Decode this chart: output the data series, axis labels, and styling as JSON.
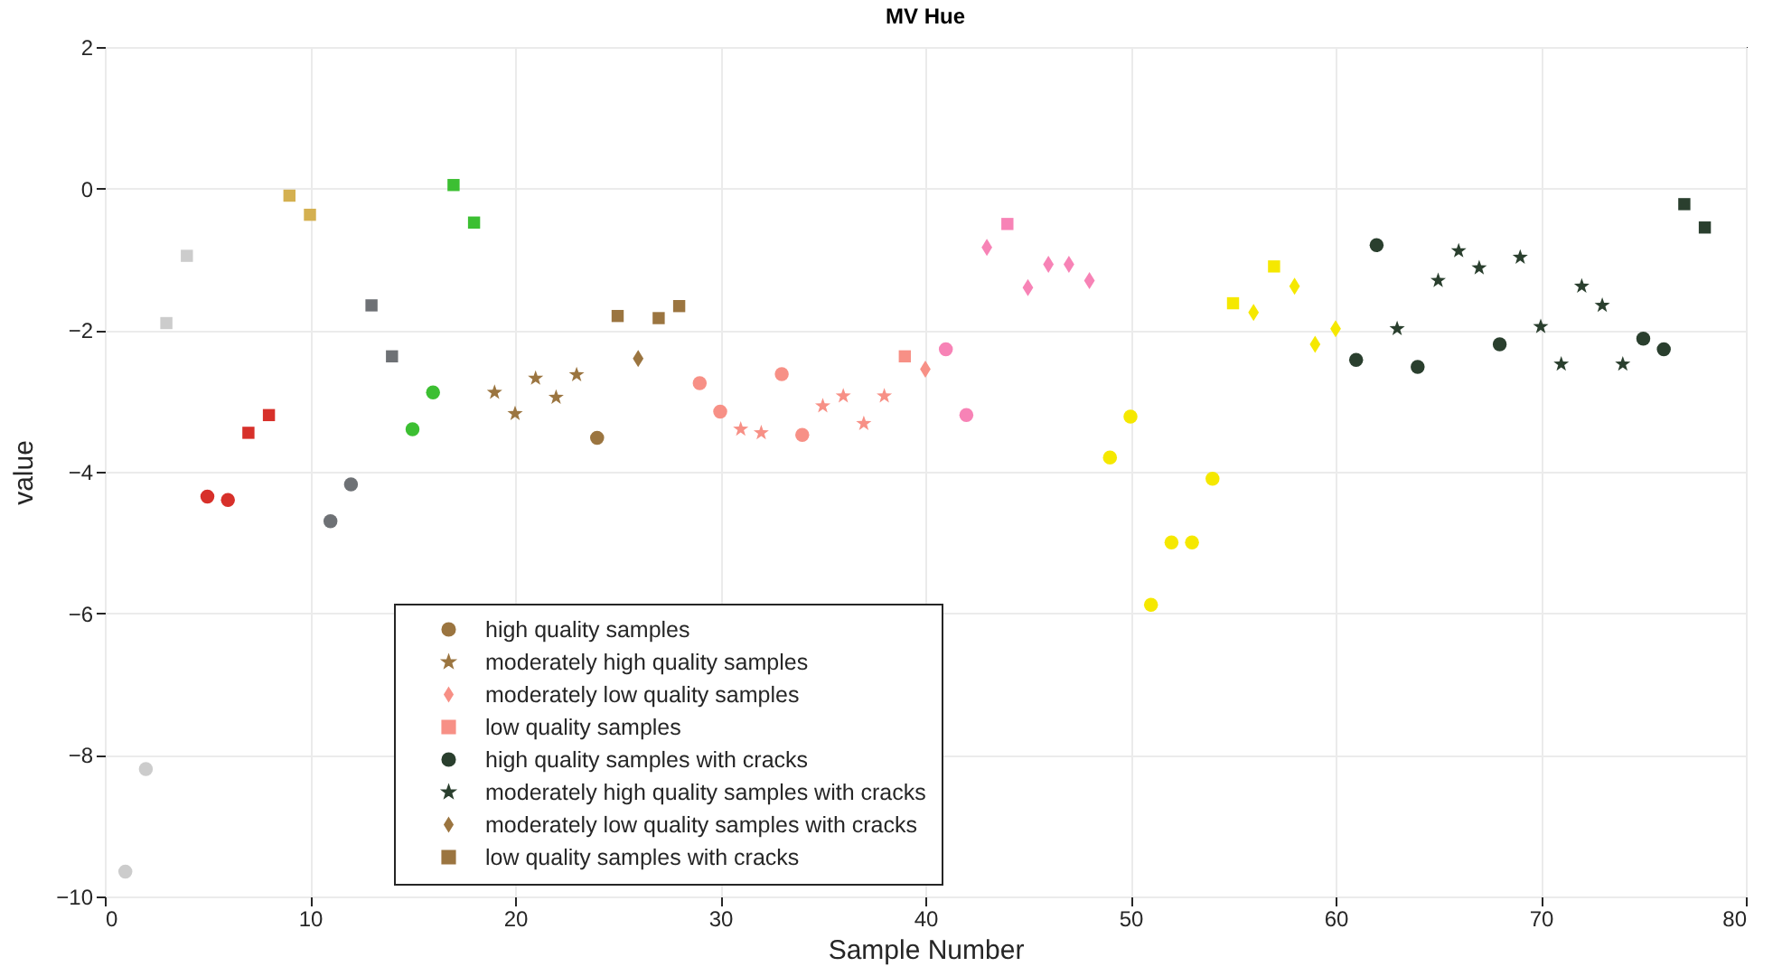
{
  "chart_data": {
    "type": "scatter",
    "title": "MV Hue",
    "xlabel": "Sample Number",
    "ylabel": "value",
    "xlim": [
      0,
      80
    ],
    "xticks": [
      0,
      10,
      20,
      30,
      40,
      50,
      60,
      70,
      80
    ],
    "ylim": [
      -10,
      2
    ],
    "yticks": [
      -10,
      -8,
      -6,
      -4,
      -2,
      0,
      2
    ],
    "grid": true,
    "legend": "bottom left",
    "series": [
      {
        "name": "high quality samples",
        "marker": "circle",
        "color": "#9b7540",
        "x": [
          1,
          2,
          5,
          6,
          11,
          12,
          15,
          16,
          24,
          29,
          30,
          33,
          34,
          41,
          42,
          49,
          50,
          51,
          52,
          53,
          54,
          61,
          62,
          64,
          68
        ],
        "values": [
          -9.65,
          -8.2,
          -4.35,
          -4.4,
          -4.7,
          -4.18,
          -3.4,
          -2.88,
          -3.52,
          -2.75,
          -3.15,
          -2.62,
          -3.48,
          -2.27,
          -3.2,
          -3.8,
          -3.22,
          -5.88,
          -5.0,
          -5.0,
          -4.1,
          -2.42,
          -0.8,
          -2.52,
          -2.2
        ],
        "colors": [
          "#cccccc",
          "#cccccc",
          "#d7302a",
          "#d7302a",
          "#6e7175",
          "#6e7175",
          "#3cbf32",
          "#3cbf32",
          "#9b7540",
          "#f79086",
          "#f79086",
          "#f79086",
          "#f79086",
          "#f783b6",
          "#f783b6",
          "#f5e800",
          "#f5e800",
          "#f5e800",
          "#f5e800",
          "#f5e800",
          "#f5e800",
          "#2a3f2e",
          "#2a3f2e",
          "#2a3f2e",
          "#2a3f2e"
        ]
      },
      {
        "name": "moderately high quality samples",
        "marker": "star",
        "color": "#9b7540",
        "x": [
          23,
          63,
          65,
          66,
          67
        ],
        "values": [
          -2.63,
          -1.98,
          -1.3,
          -0.88,
          -1.12
        ],
        "colors": [
          "#9b7540",
          "#2a3f2e",
          "#2a3f2e",
          "#2a3f2e",
          "#2a3f2e"
        ]
      },
      {
        "name": "moderately low quality samples",
        "marker": "diamond",
        "color": "#f79086",
        "x": [
          40,
          59,
          60
        ],
        "values": [
          -2.55,
          -2.2,
          -1.98
        ],
        "colors": [
          "#f79086",
          "#f5e800",
          "#f5e800"
        ]
      },
      {
        "name": "low quality samples",
        "marker": "square",
        "color": "#f79086",
        "x": [
          3,
          4,
          7,
          8,
          9,
          10,
          13,
          14,
          17,
          18,
          39,
          77,
          78
        ],
        "values": [
          -1.9,
          -0.95,
          -3.45,
          -3.2,
          -0.1,
          -0.37,
          -1.65,
          -2.37,
          0.05,
          -0.48,
          -2.37,
          -0.22,
          -0.55
        ],
        "colors": [
          "#cccccc",
          "#cccccc",
          "#d7302a",
          "#d7302a",
          "#d4b050",
          "#d4b050",
          "#6e7175",
          "#6e7175",
          "#3cbf32",
          "#3cbf32",
          "#f79086",
          "#2a3f2e",
          "#2a3f2e"
        ]
      },
      {
        "name": "high quality samples with cracks",
        "marker": "circle",
        "color": "#2a3f2e",
        "x": [
          75,
          76
        ],
        "values": [
          -2.12,
          -2.27
        ],
        "colors": [
          "#2a3f2e",
          "#2a3f2e"
        ]
      },
      {
        "name": "moderately high quality samples with cracks",
        "marker": "star",
        "color": "#2a3f2e",
        "x": [
          19,
          20,
          21,
          22,
          31,
          32,
          35,
          36,
          37,
          38,
          69,
          70,
          71,
          72,
          73,
          74
        ],
        "values": [
          -2.88,
          -3.18,
          -2.68,
          -2.95,
          -3.4,
          -3.45,
          -3.07,
          -2.93,
          -3.32,
          -2.93,
          -0.97,
          -1.95,
          -2.48,
          -1.38,
          -1.65,
          -2.48
        ],
        "colors": [
          "#9b7540",
          "#9b7540",
          "#9b7540",
          "#9b7540",
          "#f79086",
          "#f79086",
          "#f79086",
          "#f79086",
          "#f79086",
          "#f79086",
          "#2a3f2e",
          "#2a3f2e",
          "#2a3f2e",
          "#2a3f2e",
          "#2a3f2e",
          "#2a3f2e"
        ]
      },
      {
        "name": "moderately low quality samples with cracks",
        "marker": "diamond",
        "color": "#9b7540",
        "x": [
          26,
          43,
          45,
          46,
          47,
          48,
          56,
          58
        ],
        "values": [
          -2.4,
          -0.83,
          -1.4,
          -1.07,
          -1.07,
          -1.3,
          -1.75,
          -1.38
        ],
        "colors": [
          "#9b7540",
          "#f783b6",
          "#f783b6",
          "#f783b6",
          "#f783b6",
          "#f783b6",
          "#f5e800",
          "#f5e800"
        ]
      },
      {
        "name": "low quality samples with cracks",
        "marker": "square",
        "color": "#9b7540",
        "x": [
          25,
          27,
          28,
          44,
          55,
          57
        ],
        "values": [
          -1.8,
          -1.83,
          -1.66,
          -0.5,
          -1.62,
          -1.1
        ],
        "colors": [
          "#9b7540",
          "#9b7540",
          "#9b7540",
          "#f783b6",
          "#f5e800",
          "#f5e800"
        ]
      }
    ]
  }
}
